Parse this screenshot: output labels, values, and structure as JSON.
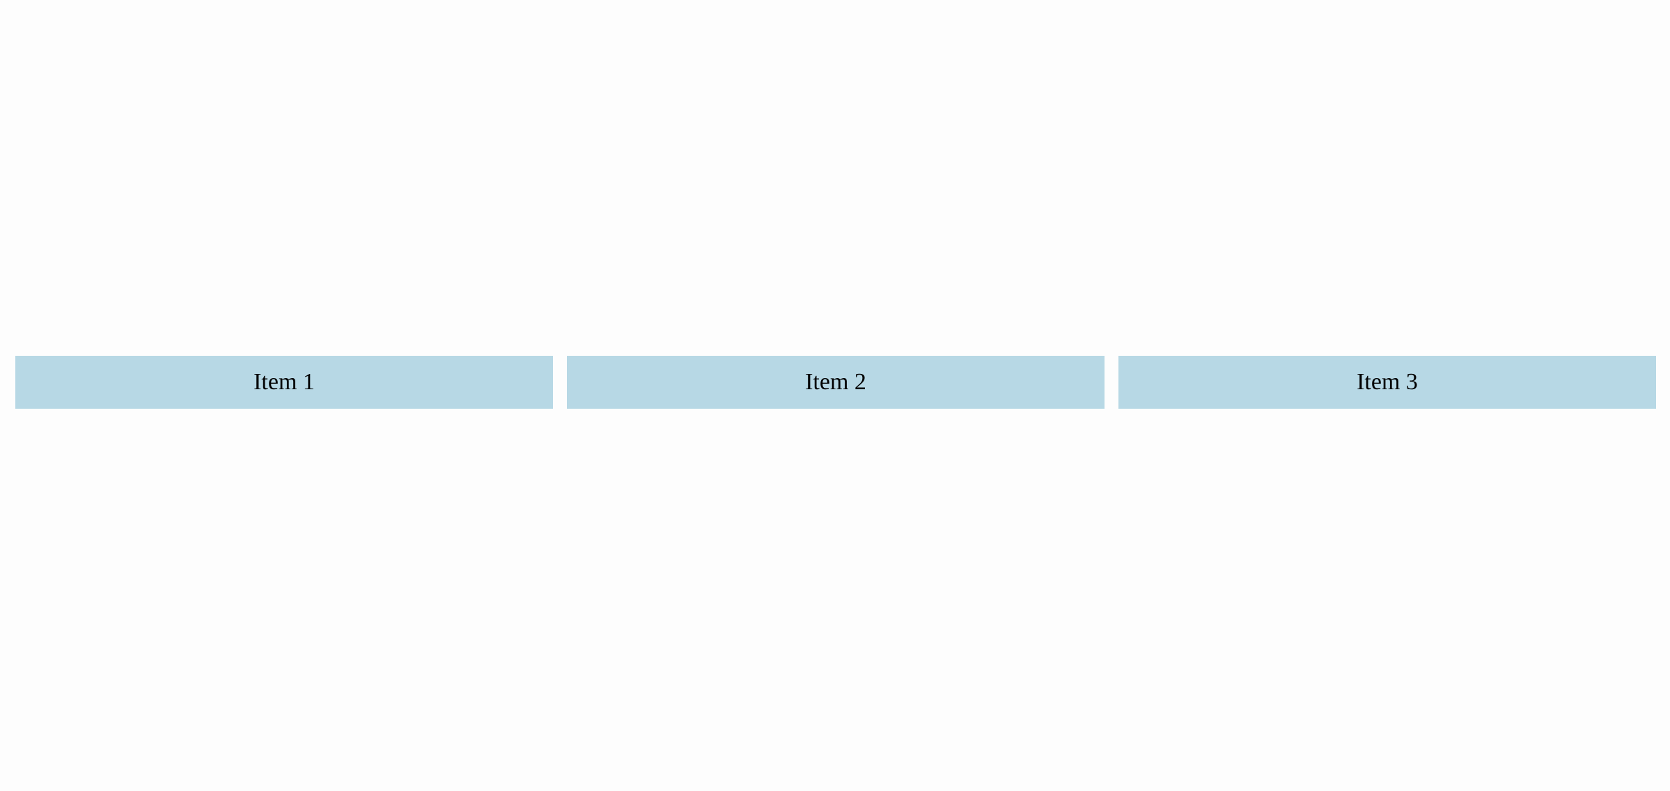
{
  "colors": {
    "background": "#fdfdfd",
    "item_background": "#b7d8e5",
    "item_text": "#000000"
  },
  "items": [
    {
      "label": "Item 1"
    },
    {
      "label": "Item 2"
    },
    {
      "label": "Item 3"
    }
  ]
}
